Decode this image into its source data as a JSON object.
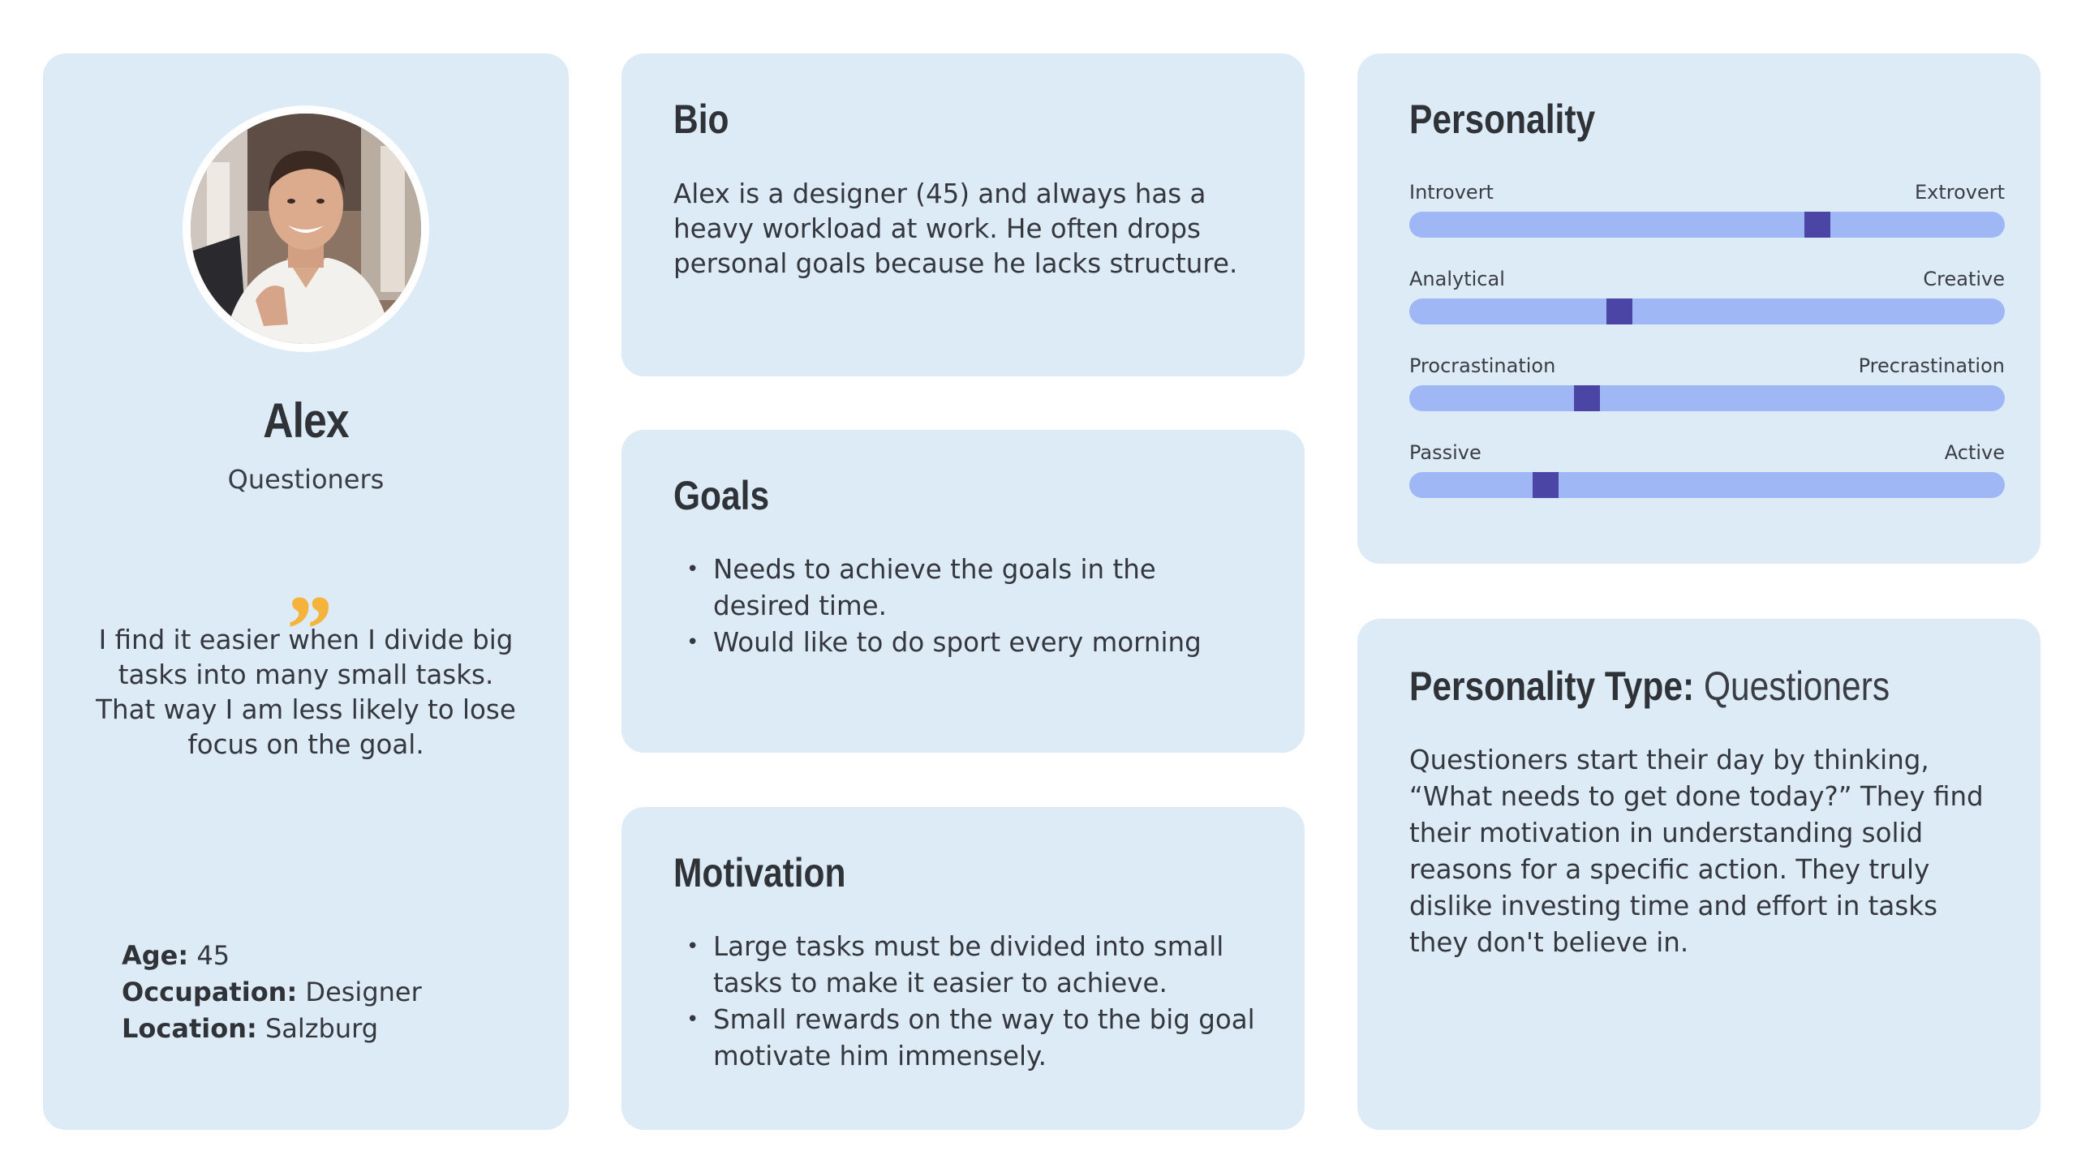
{
  "profile": {
    "name": "Alex",
    "type": "Questioners",
    "quote_mark": "”",
    "quote": "I find it easier when I divide big tasks into many small tasks. That way I am less likely to lose focus on the goal.",
    "facts": [
      {
        "label": "Age:",
        "value": " 45"
      },
      {
        "label": "Occupation:",
        "value": " Designer"
      },
      {
        "label": "Location:",
        "value": " Salzburg"
      }
    ]
  },
  "bio": {
    "title": "Bio",
    "text": "Alex is a designer (45) and always has a heavy workload at work. He often drops personal goals because he lacks structure."
  },
  "goals": {
    "title": "Goals",
    "items": [
      "Needs to achieve the goals in the desired time.",
      "Would like to do sport every morning"
    ]
  },
  "motivation": {
    "title": "Motivation",
    "items": [
      "Large tasks must be divided into small tasks to make it easier to achieve.",
      "Small rewards on the way to the big goal motivate him immensely."
    ]
  },
  "personality": {
    "title": "Personality",
    "sliders": [
      {
        "left": "Introvert",
        "right": "Extrovert",
        "value": 0.685
      },
      {
        "left": "Analytical",
        "right": "Creative",
        "value": 0.353
      },
      {
        "left": "Procrastination",
        "right": "Precrastination",
        "value": 0.298
      },
      {
        "left": "Passive",
        "right": "Active",
        "value": 0.229
      }
    ],
    "track_color": "#9fb8f5",
    "thumb_color": "#4b45a6"
  },
  "personality_type": {
    "label": "Personality Type:",
    "value": "Questioners",
    "text": "Questioners start their day by thinking, “What needs to get done today?” They find their motivation in understanding solid reasons for a specific action. They truly dislike investing time and effort in tasks they don't believe in."
  },
  "colors": {
    "card_bg": "#dcebf6",
    "accent_quote": "#f5b33b",
    "text": "#333740"
  }
}
